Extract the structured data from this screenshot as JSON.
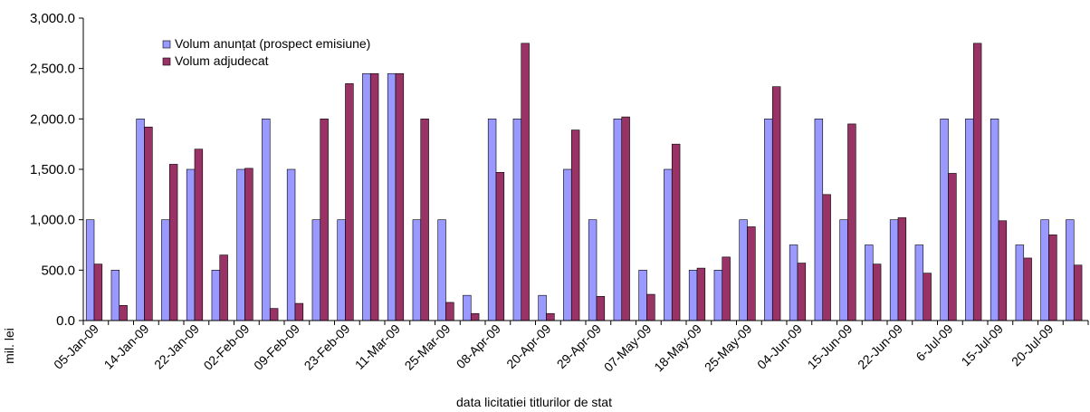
{
  "chart_data": {
    "type": "bar",
    "xlabel": "data  licitatiei  titlurilor de stat",
    "ylabel": "mil. lei",
    "ylim": [
      0,
      3000
    ],
    "yticks": [
      "0.0",
      "500.0",
      "1,000.0",
      "1,500.0",
      "2,000.0",
      "2,500.0",
      "3,000.0"
    ],
    "ytick_values": [
      0,
      500,
      1000,
      1500,
      2000,
      2500,
      3000
    ],
    "xtick_labels": [
      "05-Jan-09",
      "14-Jan-09",
      "22-Jan-09",
      "02-Feb-09",
      "09-Feb-09",
      "23-Feb-09",
      "11-Mar-09",
      "25-Mar-09",
      "08-Apr-09",
      "20-Apr-09",
      "29-Apr-09",
      "07-May-09",
      "18-May-09",
      "25-May-09",
      "04-Jun-09",
      "15-Jun-09",
      "22-Jun-09",
      "6-Jul-09",
      "15-Jul-09",
      "20-Jul-09"
    ],
    "legend_position": "top-left",
    "grid": false,
    "series": [
      {
        "name": "Volum anunțat (prospect emisiune)",
        "color": "#9999ff",
        "values": [
          1000,
          500,
          2000,
          1000,
          1500,
          500,
          1500,
          2000,
          1500,
          1000,
          1000,
          2450,
          2450,
          1000,
          1000,
          250,
          2000,
          2000,
          250,
          1500,
          1000,
          2000,
          500,
          1500,
          500,
          500,
          1000,
          2000,
          750,
          2000,
          1000,
          750,
          1000,
          750,
          2000,
          2000,
          2000,
          750,
          1000,
          1000
        ]
      },
      {
        "name": "Volum adjudecat",
        "color": "#993366",
        "values": [
          560,
          150,
          1920,
          1550,
          1700,
          650,
          1510,
          120,
          170,
          2000,
          2350,
          2450,
          2450,
          2000,
          180,
          70,
          1470,
          2750,
          70,
          1890,
          240,
          2020,
          260,
          1750,
          520,
          630,
          930,
          2320,
          570,
          1250,
          1950,
          560,
          1020,
          470,
          1460,
          2750,
          990,
          620,
          850,
          550
        ]
      }
    ]
  }
}
